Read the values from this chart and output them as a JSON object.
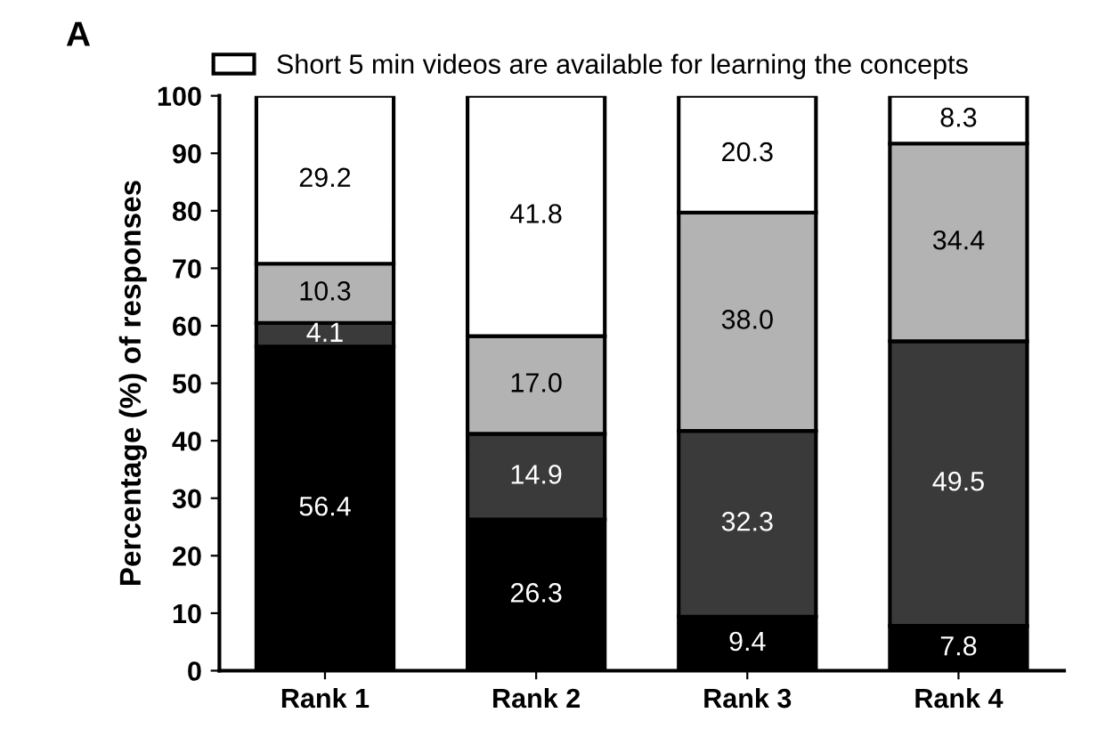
{
  "chart_data": {
    "type": "bar",
    "title": "A",
    "ylabel": "Percentage (%) of responses",
    "categories": [
      "Rank 1",
      "Rank 2",
      "Rank 3",
      "Rank 4"
    ],
    "stacked": true,
    "legend": "top",
    "series": [
      {
        "color": "#000000",
        "values": [
          56.4,
          26.3,
          9.4,
          7.8
        ],
        "value_labels": [
          "56.4",
          "26.3",
          "9.4",
          "7.8"
        ]
      },
      {
        "color": "#3a3a3a",
        "values": [
          4.1,
          14.9,
          32.3,
          49.5
        ],
        "value_labels": [
          "4.1",
          "14.9",
          "32.3",
          "49.5"
        ]
      },
      {
        "color": "#b3b3b3",
        "values": [
          10.3,
          17.0,
          38.0,
          34.4
        ],
        "value_labels": [
          "10.3",
          "17.0",
          "38.0",
          "34.4"
        ]
      },
      {
        "name": "Short 5 min videos are available for learning the concepts",
        "color": "#ffffff",
        "values": [
          29.2,
          41.8,
          20.3,
          8.3
        ],
        "value_labels": [
          "29.2",
          "41.8",
          "20.3",
          "8.3"
        ]
      }
    ],
    "ylim": [
      0,
      100
    ],
    "yticks": [
      0,
      10,
      20,
      30,
      40,
      50,
      60,
      70,
      80,
      90,
      100
    ],
    "grid": false
  }
}
